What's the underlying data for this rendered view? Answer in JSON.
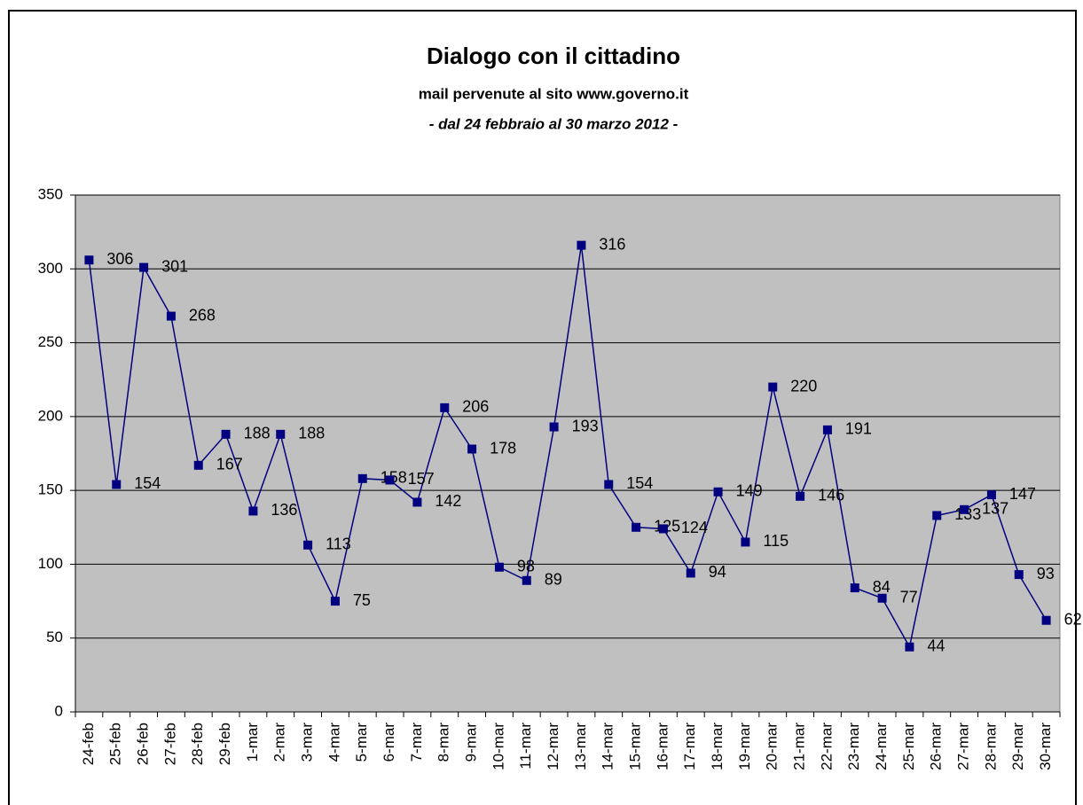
{
  "chart_data": {
    "type": "line",
    "title": "Dialogo con il cittadino",
    "subtitle": "mail pervenute al sito www.governo.it",
    "subtitle2": "- dal 24 febbraio al 30 marzo 2012 -",
    "categories": [
      "24-feb",
      "25-feb",
      "26-feb",
      "27-feb",
      "28-feb",
      "29-feb",
      "1-mar",
      "2-mar",
      "3-mar",
      "4-mar",
      "5-mar",
      "6-mar",
      "7-mar",
      "8-mar",
      "9-mar",
      "10-mar",
      "11-mar",
      "12-mar",
      "13-mar",
      "14-mar",
      "15-mar",
      "16-mar",
      "17-mar",
      "18-mar",
      "19-mar",
      "20-mar",
      "21-mar",
      "22-mar",
      "23-mar",
      "24-mar",
      "25-mar",
      "26-mar",
      "27-mar",
      "28-mar",
      "29-mar",
      "30-mar"
    ],
    "values": [
      306,
      154,
      301,
      268,
      167,
      188,
      136,
      188,
      113,
      75,
      158,
      157,
      142,
      206,
      178,
      98,
      89,
      193,
      316,
      154,
      125,
      124,
      94,
      149,
      115,
      220,
      146,
      191,
      84,
      77,
      44,
      133,
      137,
      147,
      93,
      62
    ],
    "color": "#000080",
    "ylim": [
      0,
      350
    ],
    "yticks": [
      0,
      50,
      100,
      150,
      200,
      250,
      300,
      350
    ],
    "grid": true
  }
}
